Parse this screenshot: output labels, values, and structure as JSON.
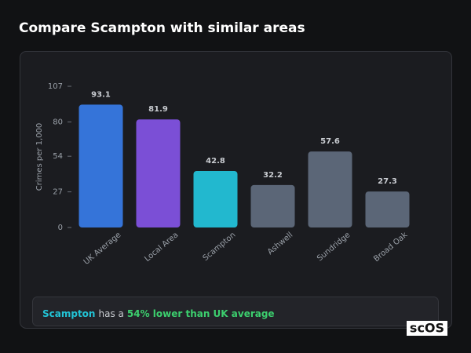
{
  "header": {
    "title": "Compare Scampton with similar areas"
  },
  "chart_data": {
    "type": "bar",
    "y_label": "Crimes per 1,000",
    "categories": [
      "UK Average",
      "Local Area",
      "Scampton",
      "Ashwell",
      "Sundridge",
      "Broad Oak"
    ],
    "values": [
      93.1,
      81.9,
      42.8,
      32.2,
      57.6,
      27.3
    ],
    "colors": [
      "#3574d9",
      "#7b4fd6",
      "#22b8cf",
      "#5b6677",
      "#5b6677",
      "#5b6677"
    ],
    "ylim": [
      0,
      107
    ],
    "yticks": [
      0,
      27,
      54,
      80,
      107
    ]
  },
  "summary": {
    "area": "Scampton",
    "text": "has a",
    "comparison": "54% lower than UK average"
  },
  "logo": "scOS"
}
